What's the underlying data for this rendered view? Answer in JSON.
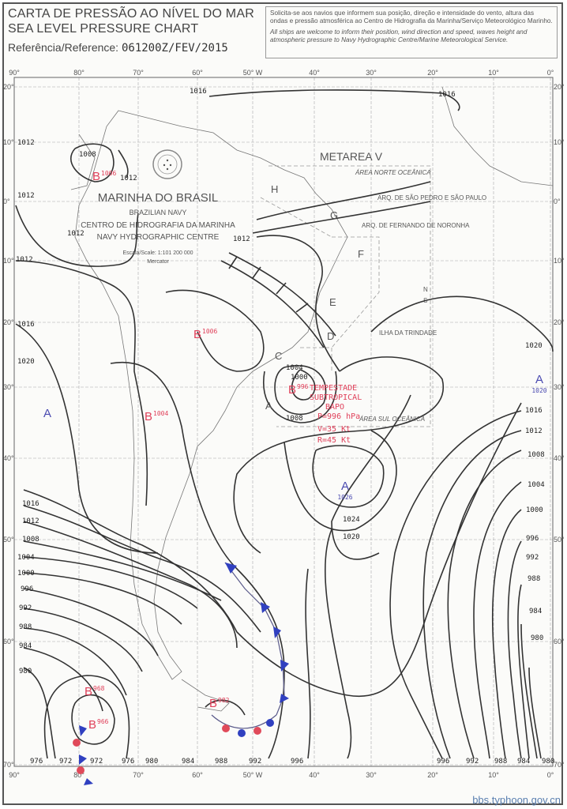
{
  "header": {
    "title_pt": "CARTA DE PRESSÃO AO NÍVEL DO MAR",
    "title_en": "SEA LEVEL PRESSURE CHART",
    "reference_label": "Referência/Reference:",
    "reference_value": "061200Z/FEV/2015",
    "notice_pt": "Solicita-se aos navios que informem sua posição, direção e intensidade do vento, altura das ondas e pressão atmosférica ao Centro de Hidrografia da Marinha/Serviço Meteorológico Marinho.",
    "notice_en": "All ships are welcome to inform their position, wind direction and speed, waves height and atmospheric pressure to Navy Hydrographic Centre/Marine Meteorological Service."
  },
  "legend": {
    "org_pt": "MARINHA DO BRASIL",
    "org_en": "BRAZILIAN NAVY",
    "centre_pt": "CENTRO DE HIDROGRAFIA DA MARINHA",
    "centre_en": "NAVY HYDROGRAPHIC CENTRE",
    "scale": "Escala/Scale: 1:101 200 000",
    "projection": "Mercator"
  },
  "axes": {
    "longitude_labels": [
      "90°",
      "80°",
      "70°",
      "60°",
      "50° W",
      "40°",
      "30°",
      "20°",
      "10°",
      "0°"
    ],
    "latitude_labels": [
      "20°",
      "10°",
      "0°",
      "10°",
      "20°",
      "30°",
      "40°",
      "50°",
      "60°",
      "70°"
    ]
  },
  "areas": {
    "metarea": "METAREA V",
    "north": "ÁREA NORTE OCEÂNICA",
    "south": "ÁREA SUL OCEÂNICA",
    "sao_pedro": "ARQ. DE SÃO PEDRO E SÃO PAULO",
    "noronha": "ARQ. DE FERNANDO DE NORONHA",
    "trindade": "ILHA DA TRINDADE",
    "zones": [
      "H",
      "G",
      "F",
      "E",
      "D",
      "C",
      "A"
    ],
    "n": "N",
    "s": "S"
  },
  "systems": [
    {
      "type": "B",
      "value": "1006",
      "color": "#e0405a"
    },
    {
      "type": "B",
      "value": "1006",
      "color": "#e0405a"
    },
    {
      "type": "B",
      "value": "1004",
      "color": "#e0405a"
    },
    {
      "type": "B",
      "value": "996",
      "color": "#e0405a"
    },
    {
      "type": "A",
      "value": "",
      "color": "#4a4ab0"
    },
    {
      "type": "A",
      "value": "1026",
      "color": "#4a4ab0"
    },
    {
      "type": "A",
      "value": "1020",
      "color": "#4a4ab0"
    },
    {
      "type": "B",
      "value": "968",
      "color": "#e0405a"
    },
    {
      "type": "B",
      "value": "966",
      "color": "#e0405a"
    },
    {
      "type": "B",
      "value": "982",
      "color": "#e0405a"
    }
  ],
  "storm_annotation": {
    "line1": "TEMPESTADE",
    "line2": "SUBTROPICAL",
    "name": "BAPO",
    "pressure": "P=996 hPa",
    "wind": "V=35 Kt",
    "gust": "R=45 Kt",
    "color": "#e0405a"
  },
  "isobar_labels": [
    "1016",
    "1016",
    "1012",
    "1008",
    "1012",
    "1012",
    "1012",
    "1012",
    "1012",
    "1016",
    "1020",
    "1004",
    "1000",
    "1008",
    "1016",
    "1012",
    "1008",
    "1004",
    "1000",
    "996",
    "992",
    "988",
    "984",
    "980",
    "1020",
    "1016",
    "1012",
    "1008",
    "1004",
    "1000",
    "996",
    "992",
    "988",
    "984",
    "980",
    "1024",
    "1020",
    "976",
    "972",
    "972",
    "976",
    "980",
    "984",
    "988",
    "992",
    "996",
    "996",
    "992",
    "988",
    "984",
    "980"
  ],
  "watermark": "bbs.typhoon.gov.cn"
}
